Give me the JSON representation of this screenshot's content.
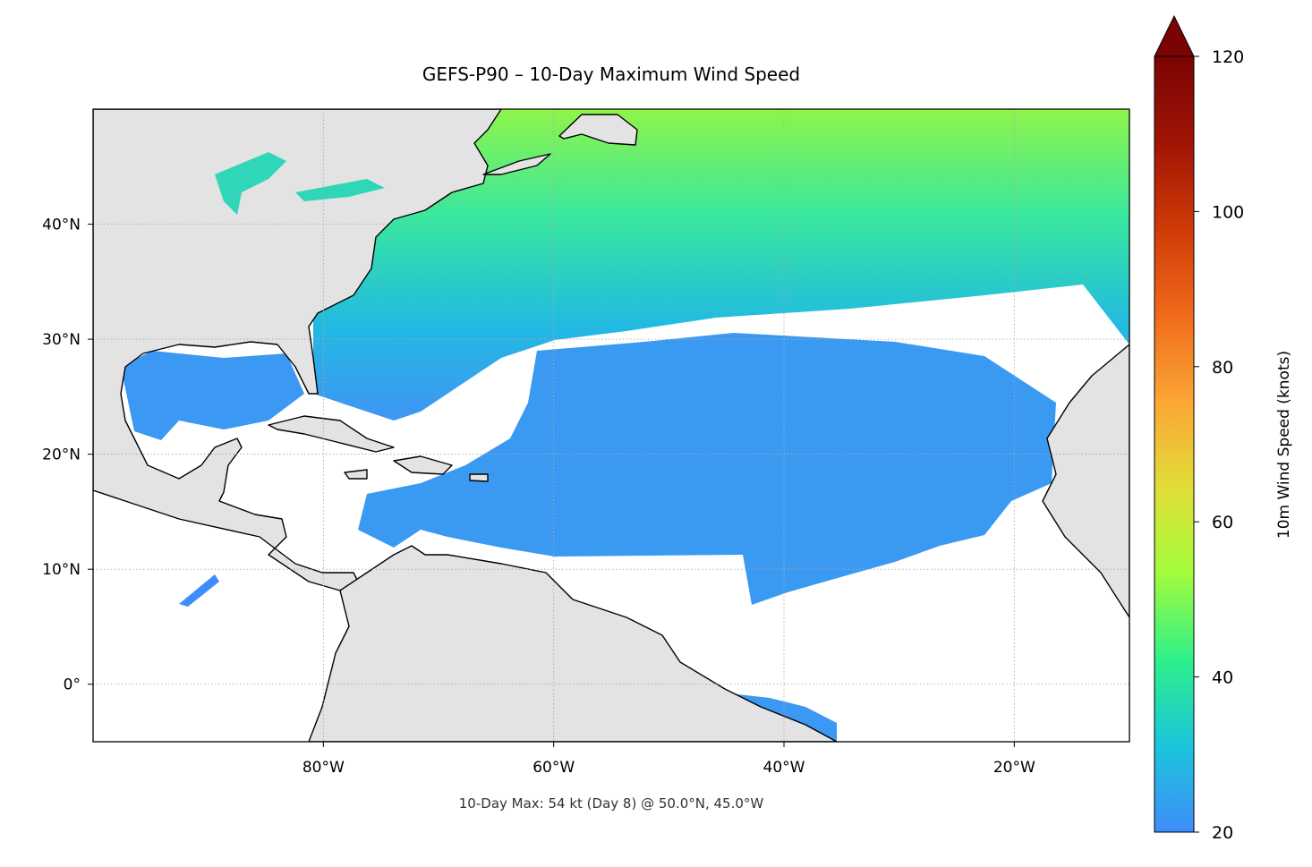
{
  "title": "GEFS-P90 – 10-Day Maximum Wind Speed",
  "annotation": "10-Day Max: 54 kt (Day 8) @ 50.0°N, 45.0°W",
  "map": {
    "type": "map",
    "xlim": [
      -100,
      -10
    ],
    "ylim": [
      -5,
      50
    ],
    "grid": true,
    "xticks": [
      {
        "value": -80,
        "label": "80°W"
      },
      {
        "value": -60,
        "label": "60°W"
      },
      {
        "value": -40,
        "label": "40°W"
      },
      {
        "value": -20,
        "label": "20°W"
      }
    ],
    "yticks": [
      {
        "value": 0,
        "label": "0°"
      },
      {
        "value": 10,
        "label": "10°N"
      },
      {
        "value": 20,
        "label": "20°N"
      },
      {
        "value": 30,
        "label": "30°N"
      },
      {
        "value": 40,
        "label": "40°N"
      }
    ]
  },
  "colorbar": {
    "label": "10m Wind Speed (knots)",
    "lim": [
      20,
      120
    ],
    "ticks": [
      20,
      40,
      60,
      80,
      100,
      120
    ],
    "extend": "max",
    "colormap": [
      "#3f8dfa",
      "#1bc5dc",
      "#2ef08a",
      "#a2fc3c",
      "#e1dd37",
      "#fca636",
      "#f06a1a",
      "#cf3b07",
      "#a01404",
      "#7a0403"
    ]
  }
}
